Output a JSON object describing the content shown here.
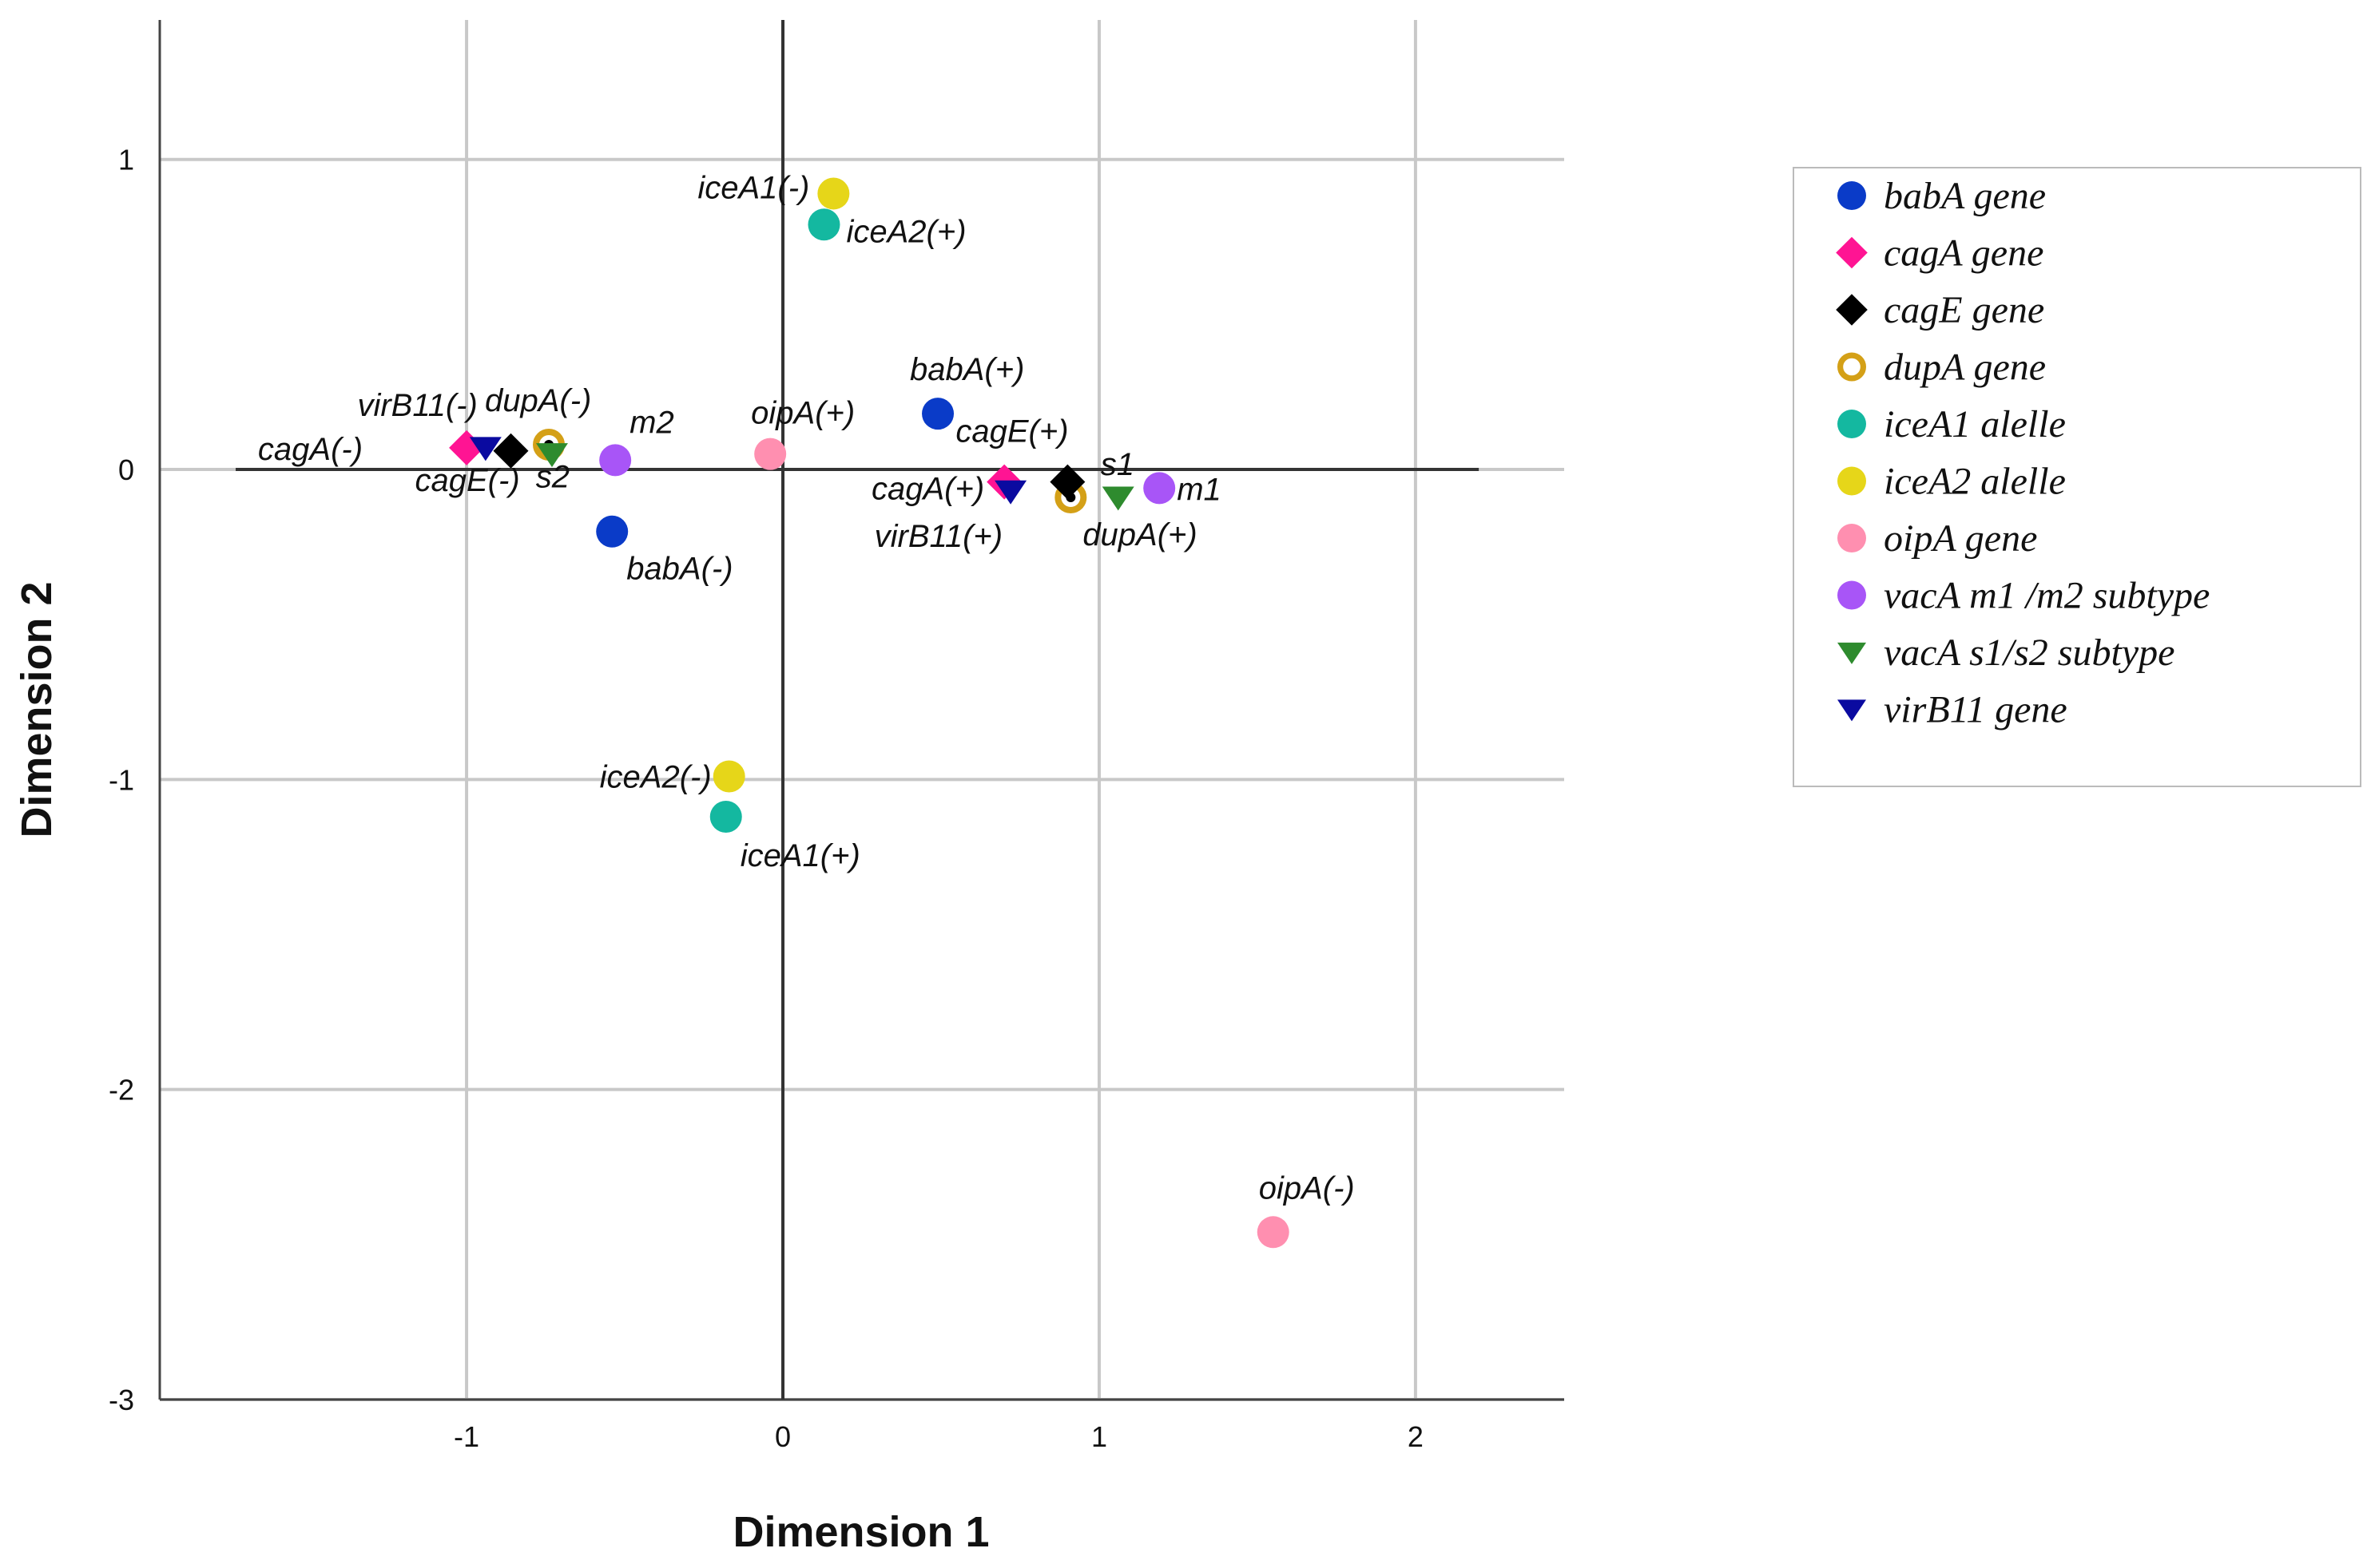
{
  "chart_data": {
    "type": "scatter",
    "title": "",
    "xlabel": "Dimension 1",
    "ylabel": "Dimension 2",
    "xlim": [
      -1.97,
      2.47
    ],
    "ylim": [
      -3.0,
      1.45
    ],
    "xticks": [
      -1,
      0,
      1,
      2
    ],
    "yticks": [
      1,
      0,
      -1,
      -2,
      -3
    ],
    "xtick_labels": [
      "-1",
      "0",
      "1",
      "2"
    ],
    "ytick_labels": [
      "1",
      "0",
      "-1",
      "-2",
      "-3"
    ],
    "grid": true,
    "legend_position": "right",
    "colors": {
      "babA": "#0a3bc8",
      "cagA": "#ff1493",
      "cagE": "#000000",
      "dupA": "#d4a017",
      "iceA1": "#14b8a0",
      "iceA2": "#e6d619",
      "oipA": "#ff8fb0",
      "vacA_m": "#a855f7",
      "vacA_s": "#2e8b2e",
      "virB11": "#0a0aa0"
    },
    "series": [
      {
        "key": "babA",
        "name": "babA gene",
        "marker": "circle",
        "points": [
          {
            "label": "babA(+)",
            "x": 0.49,
            "y": 0.18
          },
          {
            "label": "babA(-)",
            "x": -0.54,
            "y": -0.2
          }
        ]
      },
      {
        "key": "cagA",
        "name": "cagA gene",
        "marker": "diamond",
        "points": [
          {
            "label": "cagA(+)",
            "x": 0.7,
            "y": -0.04
          },
          {
            "label": "cagA(-)",
            "x": -1.0,
            "y": 0.07
          }
        ]
      },
      {
        "key": "cagE",
        "name": "cagE gene",
        "marker": "diamond",
        "points": [
          {
            "label": "cagE(+)",
            "x": 0.9,
            "y": -0.04
          },
          {
            "label": "cagE(-)",
            "x": -0.86,
            "y": 0.06
          }
        ]
      },
      {
        "key": "dupA",
        "name": "dupA gene",
        "marker": "ring",
        "points": [
          {
            "label": "dupA(+)",
            "x": 0.91,
            "y": -0.09
          },
          {
            "label": "dupA(-)",
            "x": -0.74,
            "y": 0.08
          }
        ]
      },
      {
        "key": "iceA1",
        "name": "iceA1 alelle",
        "marker": "circle",
        "points": [
          {
            "label": "iceA2(+)",
            "x": 0.13,
            "y": 0.79
          },
          {
            "label": "iceA1(+)",
            "x": -0.18,
            "y": -1.12
          }
        ]
      },
      {
        "key": "iceA2",
        "name": "iceA2 alelle",
        "marker": "circle",
        "points": [
          {
            "label": "iceA1(-)",
            "x": 0.16,
            "y": 0.89
          },
          {
            "label": "iceA2(-)",
            "x": -0.17,
            "y": -0.99
          }
        ]
      },
      {
        "key": "oipA",
        "name": "oipA gene",
        "marker": "circle",
        "points": [
          {
            "label": "oipA(+)",
            "x": -0.04,
            "y": 0.05
          },
          {
            "label": "oipA(-)",
            "x": 1.55,
            "y": -2.46
          }
        ]
      },
      {
        "key": "vacA_m",
        "name": "vacA m1 /m2 subtype",
        "marker": "circle",
        "points": [
          {
            "label": "m1",
            "x": 1.19,
            "y": -0.06
          },
          {
            "label": "m2",
            "x": -0.53,
            "y": 0.03
          }
        ]
      },
      {
        "key": "vacA_s",
        "name": "vacA s1/s2 subtype",
        "marker": "triangle-down",
        "points": [
          {
            "label": "s1",
            "x": 1.06,
            "y": -0.09
          },
          {
            "label": "s2",
            "x": -0.73,
            "y": 0.05
          }
        ]
      },
      {
        "key": "virB11",
        "name": "virB11 gene",
        "marker": "triangle-down",
        "points": [
          {
            "label": "virB11(+)",
            "x": 0.72,
            "y": -0.07
          },
          {
            "label": "virB11(-)",
            "x": -0.94,
            "y": 0.07
          }
        ]
      }
    ]
  }
}
